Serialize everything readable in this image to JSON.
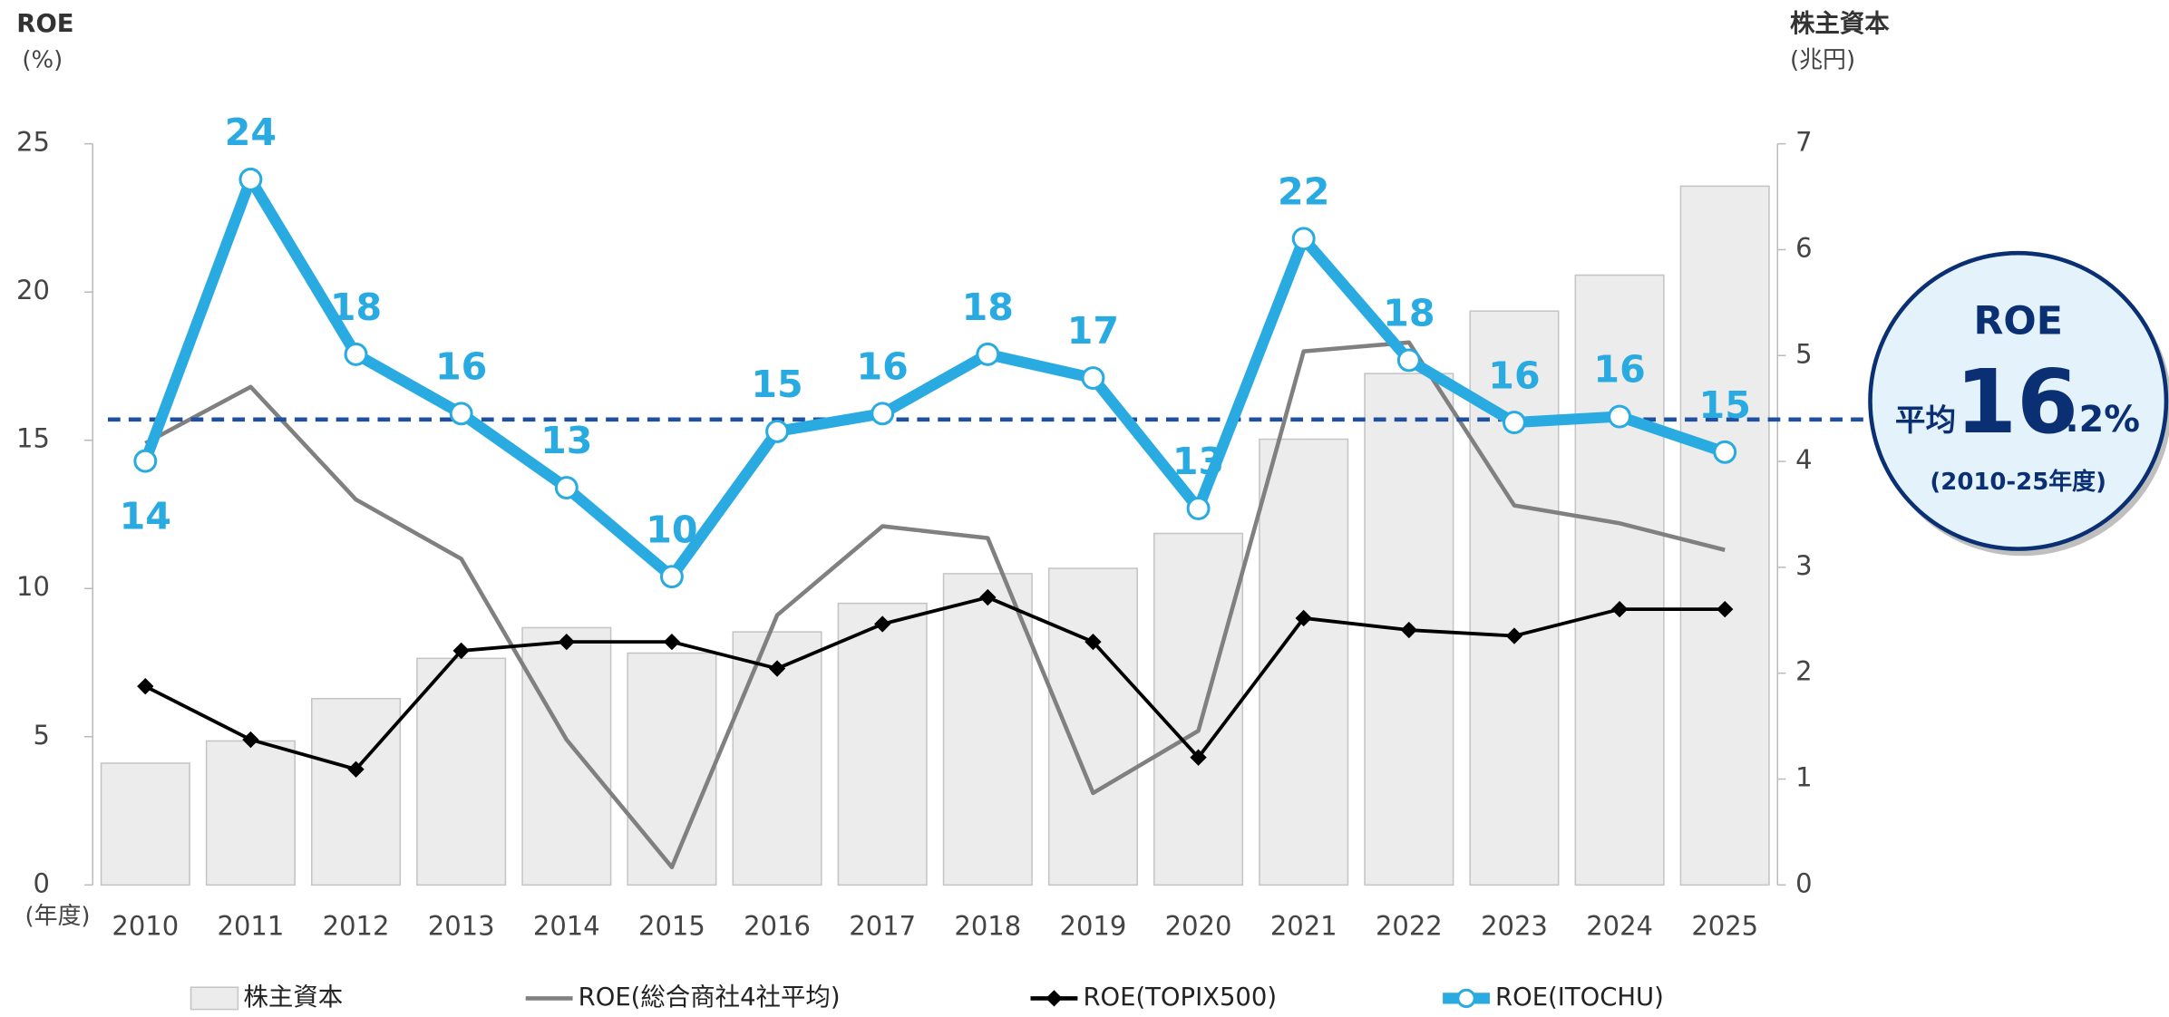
{
  "chart_data": {
    "type": "combo",
    "y_title": "ROE",
    "y_unit": "(%)",
    "y2_title": "株主資本",
    "y2_unit": "(兆円)",
    "x_unit": "(年度)",
    "categories": [
      "2010",
      "2011",
      "2012",
      "2013",
      "2014",
      "2015",
      "2016",
      "2017",
      "2018",
      "2019",
      "2020",
      "2021",
      "2022",
      "2023",
      "2024",
      "2025"
    ],
    "ylim": [
      0,
      25
    ],
    "yticks": [
      0,
      5,
      10,
      15,
      20,
      25
    ],
    "y2lim": [
      0,
      7
    ],
    "y2ticks": [
      0,
      1,
      2,
      3,
      4,
      5,
      6,
      7
    ],
    "series": [
      {
        "name": "株主資本",
        "type": "bar",
        "axis": "y2",
        "color": "#ececec",
        "edge": "#c4c4c4",
        "values": [
          1.15,
          1.36,
          1.76,
          2.14,
          2.43,
          2.19,
          2.39,
          2.66,
          2.94,
          2.99,
          3.32,
          4.21,
          4.83,
          5.42,
          5.76,
          6.6
        ]
      },
      {
        "name": "ROE(総合商社4社平均)",
        "type": "line",
        "color": "#808080",
        "values": [
          14.9,
          16.8,
          13.0,
          11.0,
          4.9,
          0.6,
          9.1,
          12.1,
          11.7,
          3.1,
          5.2,
          18.0,
          18.3,
          12.8,
          12.2,
          11.3
        ]
      },
      {
        "name": "ROE(TOPIX500)",
        "type": "line",
        "marker": "diamond",
        "color": "#000000",
        "values": [
          6.7,
          4.9,
          3.9,
          7.9,
          8.2,
          8.2,
          7.3,
          8.8,
          9.7,
          8.2,
          4.3,
          9.0,
          8.6,
          8.4,
          9.3,
          9.3
        ]
      },
      {
        "name": "ROE(ITOCHU)",
        "type": "line",
        "marker": "circle",
        "color": "#29abe2",
        "values": [
          14.3,
          23.8,
          17.9,
          15.9,
          13.4,
          10.4,
          15.3,
          15.9,
          17.9,
          17.1,
          12.7,
          21.8,
          17.7,
          15.6,
          15.8,
          14.6
        ],
        "value_labels": [
          "14",
          "24",
          "18",
          "16",
          "13",
          "10",
          "15",
          "16",
          "18",
          "17",
          "13",
          "22",
          "18",
          "16",
          "16",
          "15"
        ]
      }
    ],
    "reference_line": {
      "value": 15.7,
      "color": "#1e4fa0",
      "style": "dashed"
    },
    "annotation": {
      "title": "ROE",
      "prefix": "平均",
      "big": "16",
      "suffix": ".2%",
      "note": "(2010-25年度)"
    }
  }
}
